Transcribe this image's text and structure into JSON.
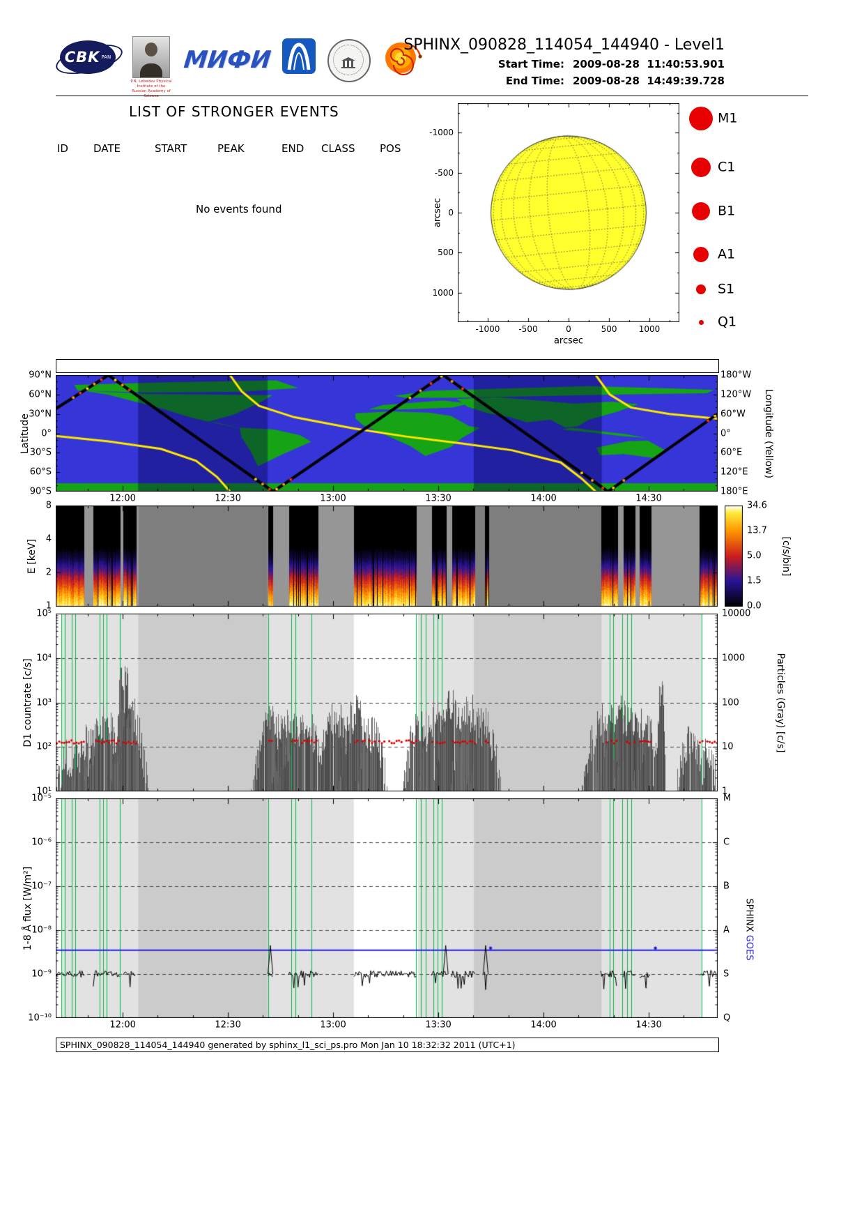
{
  "header": {
    "title": "SPHINX_090828_114054_144940 - Level1",
    "start_label": "Start Time:",
    "start_value": "2009-08-28  11:40:53.901",
    "end_label": "End Time:",
    "end_value": "2009-08-28  14:49:39.728"
  },
  "logos": {
    "cbk": {
      "text": "CBK",
      "sub": "PAN"
    },
    "lebedev": {
      "caption": "P.N. Lebedev Physical Institute of the Russian Academy of Science"
    },
    "mephi": {
      "text": "МИФИ"
    }
  },
  "events": {
    "title": "LIST OF STRONGER EVENTS",
    "columns": [
      "ID",
      "DATE",
      "START",
      "PEAK",
      "END",
      "CLASS",
      "POS"
    ],
    "empty_message": "No events found"
  },
  "sun_plot": {
    "xlabel": "arcsec",
    "ylabel": "arcsec",
    "x_tick_labels": [
      "-1000",
      "-500",
      "0",
      "500",
      "1000"
    ],
    "y_tick_labels": [
      "1000",
      "500",
      "0",
      "-500",
      "-1000"
    ],
    "tick_values": [
      -1000,
      -500,
      0,
      500,
      1000
    ],
    "axis_range_arcsec": [
      -1370,
      1370
    ],
    "disk_radius_arcsec": 960,
    "disk_color": "#ffff2e",
    "legend": [
      {
        "label": "M1",
        "r": 17
      },
      {
        "label": "C1",
        "r": 14
      },
      {
        "label": "B1",
        "r": 13
      },
      {
        "label": "A1",
        "r": 11
      },
      {
        "label": "S1",
        "r": 7
      },
      {
        "label": "Q1",
        "r": 3.5
      }
    ],
    "legend_color": "#e80000"
  },
  "colors": {
    "red": "#e80000",
    "ocean_blue": "#3535d8",
    "land_green": "#16a316",
    "night_overlay": "rgba(0,0,70,0.38)",
    "lon_yellow": "#ffe800",
    "green_line": "#00bb44",
    "goes_blue": "#2222dd",
    "shade_light": "#e2e2e2",
    "shade_mid": "#cbcbcb"
  },
  "chart_data": {
    "time_axis": {
      "start": "11:40:53.901",
      "end": "14:49:39.728",
      "duration_min": 188.76,
      "tick_labels": [
        "12:00",
        "12:30",
        "13:00",
        "13:30",
        "14:00",
        "14:30"
      ],
      "tick_minutes": [
        19.1,
        49.1,
        79.1,
        109.1,
        139.1,
        169.1
      ],
      "minor_step_min": 10,
      "first_minor_min": 9.1
    },
    "data_bands_min": [
      [
        0,
        8.1
      ],
      [
        10.7,
        18.3
      ],
      [
        19.1,
        23.0
      ],
      [
        60.6,
        61.8
      ],
      [
        66.4,
        74.9
      ],
      [
        85.0,
        102.9
      ],
      [
        107.1,
        111.3
      ],
      [
        112.9,
        119.6
      ],
      [
        122.3,
        123.4
      ],
      [
        155.4,
        160.2
      ],
      [
        161.9,
        165.3
      ],
      [
        166.5,
        169.7
      ],
      [
        183.4,
        188.76
      ]
    ],
    "night_bands_min": [
      [
        23.5,
        60.4
      ],
      [
        119.2,
        155.7
      ]
    ],
    "light_shade_bands_min": [
      [
        1.6,
        23.5
      ],
      [
        60.4,
        85.0
      ],
      [
        103.3,
        119.2
      ],
      [
        155.7,
        184.3
      ]
    ],
    "green_line_minutes": [
      1.6,
      2.6,
      4.6,
      5.6,
      12.5,
      13.5,
      14.5,
      18.3,
      60.6,
      67.2,
      68.4,
      72.9,
      102.7,
      104.1,
      105.5,
      107.7,
      108.9,
      110.1,
      158.0,
      159.0,
      161.5,
      163.0,
      164.1,
      184.2
    ],
    "panels": [
      {
        "type": "strip",
        "name": "event-markers-strip",
        "content": "empty"
      },
      {
        "type": "line",
        "name": "orbit-ground-track",
        "left_axis": {
          "label": "Latitude",
          "ticks": [
            "90°N",
            "60°N",
            "30°N",
            "0°",
            "30°S",
            "60°S",
            "90°S"
          ],
          "tick_lat": [
            90,
            60,
            30,
            0,
            -30,
            -60,
            -90
          ]
        },
        "right_axis": {
          "label": "Longitude (Yellow)",
          "ticks": [
            "180°W",
            "120°W",
            "60°W",
            "0°",
            "60°E",
            "120°E",
            "180°E"
          ]
        },
        "track_lat_points": [
          [
            0,
            38
          ],
          [
            15,
            90
          ],
          [
            62,
            -90
          ],
          [
            110.5,
            90
          ],
          [
            157.5,
            -90
          ],
          [
            188.76,
            30
          ]
        ],
        "track_lon_points": [
          [
            0,
            8
          ],
          [
            15,
            25
          ],
          [
            30,
            48
          ],
          [
            40,
            85
          ],
          [
            46,
            135
          ],
          [
            49.7,
            180
          ],
          null,
          [
            49.7,
            -180
          ],
          [
            53,
            -130
          ],
          [
            58,
            -85
          ],
          [
            68,
            -50
          ],
          [
            85,
            -15
          ],
          [
            100,
            10
          ],
          [
            115,
            30
          ],
          [
            130,
            52
          ],
          [
            144,
            90
          ],
          [
            150,
            140
          ],
          [
            154,
            180
          ],
          null,
          [
            154,
            -180
          ],
          [
            158,
            -120
          ],
          [
            164,
            -80
          ],
          [
            175,
            -60
          ],
          [
            188.76,
            -45
          ]
        ],
        "radiation_dot_minutes": [
          5,
          7,
          9,
          11,
          13,
          17,
          19,
          21,
          57,
          59,
          61,
          63,
          65,
          67,
          101,
          104,
          107,
          110,
          113,
          116,
          150,
          153,
          156,
          159,
          162,
          186,
          188
        ],
        "land_polygons": [
          [
            [
              -170,
              75
            ],
            [
              -120,
              79
            ],
            [
              -60,
              82
            ],
            [
              -48,
              70
            ],
            [
              -80,
              64
            ],
            [
              -130,
              63
            ],
            [
              -168,
              66
            ]
          ],
          [
            [
              -166,
              66
            ],
            [
              -130,
              61
            ],
            [
              -96,
              60
            ],
            [
              -62,
              59
            ],
            [
              -70,
              46
            ],
            [
              -83,
              29
            ],
            [
              -97,
              18
            ],
            [
              -106,
              24
            ],
            [
              -122,
              38
            ],
            [
              -152,
              60
            ]
          ],
          [
            [
              -97,
              18
            ],
            [
              -88,
              13
            ],
            [
              -79,
              7
            ],
            [
              -84,
              11
            ],
            [
              -93,
              17
            ]
          ],
          [
            [
              -80,
              9
            ],
            [
              -61,
              6
            ],
            [
              -47,
              -3
            ],
            [
              -41,
              -13
            ],
            [
              -57,
              -33
            ],
            [
              -70,
              -51
            ],
            [
              -74,
              -28
            ],
            [
              -79,
              -6
            ]
          ],
          [
            [
              -10,
              37
            ],
            [
              -2,
              44
            ],
            [
              9,
              46
            ],
            [
              21,
              49
            ],
            [
              31,
              51
            ],
            [
              45,
              46
            ],
            [
              36,
              40
            ],
            [
              20,
              38
            ],
            [
              6,
              37
            ]
          ],
          [
            [
              4,
              58
            ],
            [
              24,
              66
            ],
            [
              60,
              69
            ],
            [
              110,
              73
            ],
            [
              160,
              69
            ],
            [
              178,
              67
            ],
            [
              174,
              62
            ],
            [
              128,
              60
            ],
            [
              78,
              57
            ],
            [
              38,
              55
            ],
            [
              10,
              55
            ]
          ],
          [
            [
              -17,
              31
            ],
            [
              2,
              34
            ],
            [
              23,
              32
            ],
            [
              35,
              27
            ],
            [
              45,
              11
            ],
            [
              51,
              9
            ],
            [
              41,
              -7
            ],
            [
              35,
              -21
            ],
            [
              21,
              -35
            ],
            [
              13,
              -20
            ],
            [
              -5,
              3
            ],
            [
              -13,
              13
            ],
            [
              -17,
              23
            ]
          ],
          [
            [
              38,
              53
            ],
            [
              60,
              56
            ],
            [
              82,
              51
            ],
            [
              102,
              46
            ],
            [
              122,
              49
            ],
            [
              137,
              45
            ],
            [
              126,
              34
            ],
            [
              110,
              21
            ],
            [
              104,
              11
            ],
            [
              97,
              9
            ],
            [
              89,
              21
            ],
            [
              76,
              17
            ],
            [
              67,
              25
            ],
            [
              55,
              31
            ],
            [
              44,
              41
            ]
          ],
          [
            [
              95,
              6
            ],
            [
              112,
              1
            ],
            [
              127,
              -4
            ],
            [
              141,
              -7
            ],
            [
              130,
              -1
            ],
            [
              114,
              4
            ],
            [
              100,
              9
            ]
          ],
          [
            [
              114,
              -22
            ],
            [
              131,
              -12
            ],
            [
              142,
              -11
            ],
            [
              152,
              -27
            ],
            [
              145,
              -38
            ],
            [
              129,
              -32
            ],
            [
              116,
              -34
            ]
          ],
          [
            [
              -180,
              -77
            ],
            [
              180,
              -77
            ],
            [
              180,
              -90
            ],
            [
              -180,
              -90
            ]
          ]
        ]
      },
      {
        "type": "heatmap",
        "name": "energy-spectrogram",
        "y_axis": {
          "label": "E [keV]",
          "tick_labels": [
            "8",
            "4",
            "2",
            "1"
          ],
          "tick_values": [
            8,
            4,
            2,
            1
          ],
          "log2_range": [
            1,
            8
          ]
        },
        "colorbar": {
          "label": "[c/s/bin]",
          "tick_labels": [
            "34.6",
            "13.7",
            "5.0",
            "1.5",
            "0.0"
          ]
        },
        "peak_c_s_bin": 34.6,
        "efold_keV": 0.45
      },
      {
        "type": "bar+scatter",
        "name": "d1-countrate",
        "left_axis": {
          "label": "D1 countrate [c/s]",
          "tick_labels": [
            "10⁵",
            "10⁴",
            "10³",
            "10²",
            "10¹"
          ],
          "log10_range": [
            1,
            5
          ]
        },
        "right_axis": {
          "label": "Particles (Gray) [c/s]",
          "tick_labels": [
            "10000",
            "1000",
            "100",
            "10",
            "1"
          ],
          "log10_range": [
            0,
            4
          ]
        },
        "sphinx_rate_c_s": 130,
        "sphinx_color": "#dd0000",
        "particle_clusters": [
          {
            "c": 4,
            "w": 3,
            "p": 60
          },
          {
            "c": 9,
            "w": 3,
            "p": 120
          },
          {
            "c": 14,
            "w": 3,
            "p": 350
          },
          {
            "c": 19.4,
            "w": 1.2,
            "p": 3800
          },
          {
            "c": 21,
            "w": 2.5,
            "p": 700
          },
          {
            "c": 62,
            "w": 3,
            "p": 420
          },
          {
            "c": 66.5,
            "w": 2.5,
            "p": 300
          },
          {
            "c": 71,
            "w": 4,
            "p": 260
          },
          {
            "c": 80,
            "w": 3,
            "p": 420
          },
          {
            "c": 85.5,
            "w": 2.5,
            "p": 620
          },
          {
            "c": 90,
            "w": 2.5,
            "p": 200
          },
          {
            "c": 104,
            "w": 2.5,
            "p": 380
          },
          {
            "c": 108.5,
            "w": 2.5,
            "p": 520
          },
          {
            "c": 113,
            "w": 2.5,
            "p": 900
          },
          {
            "c": 118,
            "w": 3,
            "p": 600
          },
          {
            "c": 122,
            "w": 2.5,
            "p": 300
          },
          {
            "c": 156,
            "w": 3,
            "p": 350
          },
          {
            "c": 160.5,
            "w": 3,
            "p": 600
          },
          {
            "c": 165,
            "w": 3,
            "p": 420
          },
          {
            "c": 169,
            "w": 2.5,
            "p": 200
          },
          {
            "c": 172.6,
            "w": 0.6,
            "p": 3000
          },
          {
            "c": 181,
            "w": 2.5,
            "p": 140
          },
          {
            "c": 186,
            "w": 2,
            "p": 70
          }
        ]
      },
      {
        "type": "line",
        "name": "xray-flux",
        "left_axis": {
          "label": "1-8 Å flux [W/m²]",
          "tick_labels": [
            "10⁻⁵",
            "10⁻⁶",
            "10⁻⁷",
            "10⁻⁸",
            "10⁻⁹",
            "10⁻¹⁰"
          ],
          "log10_range": [
            -10,
            -5
          ]
        },
        "right_axis": {
          "goes_classes": [
            "M",
            "C",
            "B",
            "A",
            "S",
            "Q"
          ]
        },
        "series_labels": [
          {
            "text": "SPHINX",
            "color": "#000000"
          },
          {
            "text": "GOES",
            "color": "#2222dd"
          }
        ],
        "sphinx_flux_level_w_m2": 1e-09,
        "goes_flux_level_w_m2": 3.5e-09,
        "goes_dot_minutes": [
          124,
          171
        ],
        "spike_minutes": [
          61.2,
          111.2,
          122.6
        ]
      }
    ]
  },
  "footer": {
    "text": "SPHINX_090828_114054_144940 generated by sphinx_l1_sci_ps.pro Mon Jan 10 18:32:32 2011 (UTC+1)"
  }
}
